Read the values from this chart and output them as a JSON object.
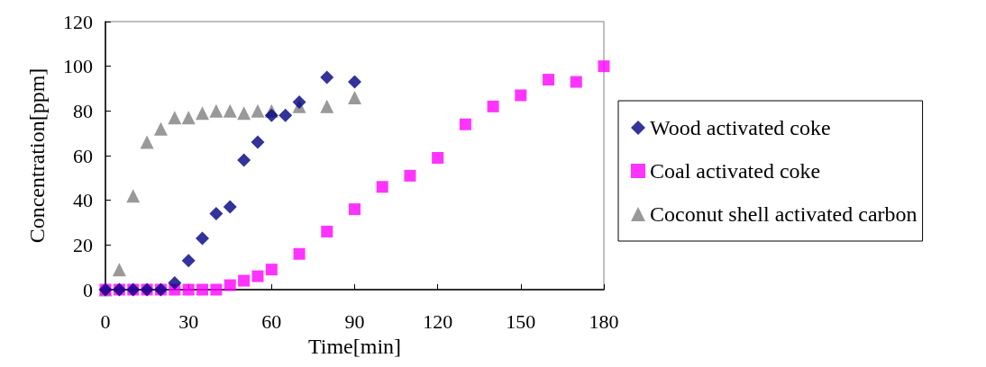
{
  "chart_data": {
    "type": "scatter",
    "xlabel": "Time[min]",
    "ylabel": "Concentration[ppm]",
    "xlim": [
      0,
      180
    ],
    "xticks": [
      0,
      30,
      60,
      90,
      120,
      150,
      180
    ],
    "ylim": [
      0,
      120
    ],
    "yticks": [
      0,
      20,
      40,
      60,
      80,
      100,
      120
    ],
    "grid": false,
    "legend": "right",
    "series": [
      {
        "name": "Wood activated coke",
        "color": "#000080",
        "marker": "diamond",
        "x": [
          0,
          5,
          10,
          15,
          20,
          25,
          30,
          35,
          40,
          45,
          50,
          55,
          60,
          65,
          70,
          80,
          90
        ],
        "values": [
          0,
          0,
          0,
          0,
          0,
          3,
          13,
          23,
          34,
          37,
          58,
          66,
          78,
          78,
          84,
          95,
          93
        ]
      },
      {
        "name": "Coal activated coke",
        "color": "#ff00ff",
        "marker": "square",
        "x": [
          0,
          5,
          10,
          15,
          20,
          25,
          30,
          35,
          40,
          45,
          50,
          55,
          60,
          70,
          80,
          90,
          100,
          110,
          120,
          130,
          140,
          150,
          160,
          170,
          180
        ],
        "values": [
          0,
          0,
          0,
          0,
          0,
          0,
          0,
          0,
          0,
          2,
          4,
          6,
          9,
          16,
          26,
          36,
          46,
          51,
          59,
          74,
          82,
          87,
          94,
          93,
          100
        ]
      },
      {
        "name": "Coconut shell activated carbon",
        "color": "#808080",
        "marker": "triangle",
        "x": [
          0,
          5,
          10,
          15,
          20,
          25,
          30,
          35,
          40,
          45,
          50,
          55,
          60,
          70,
          80,
          90
        ],
        "values": [
          0,
          9,
          42,
          66,
          72,
          77,
          77,
          79,
          80,
          80,
          79,
          80,
          80,
          82,
          82,
          86
        ]
      }
    ]
  }
}
